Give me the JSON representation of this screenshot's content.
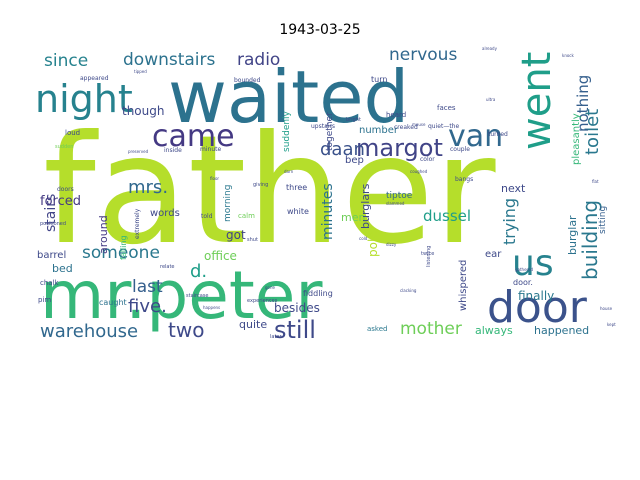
{
  "chart_data": {
    "type": "wordcloud",
    "title": "1943-03-25",
    "palette": [
      "#440154",
      "#482878",
      "#3e4989",
      "#31688e",
      "#26828e",
      "#1f9e89",
      "#35b779",
      "#6ece58",
      "#b5de2b"
    ],
    "words": [
      {
        "text": "father",
        "weight": 100,
        "color": "#b5de2b"
      },
      {
        "text": "waited",
        "weight": 62,
        "color": "#2c728e"
      },
      {
        "text": "mr.peter",
        "weight": 56,
        "color": "#35b779"
      },
      {
        "text": "door",
        "weight": 36,
        "color": "#3b528b"
      },
      {
        "text": "night",
        "weight": 30,
        "color": "#26828e"
      },
      {
        "text": "went",
        "weight": 30,
        "color": "#1f9e89"
      },
      {
        "text": "came",
        "weight": 25,
        "color": "#443983"
      },
      {
        "text": "van",
        "weight": 25,
        "color": "#31688e"
      },
      {
        "text": "us",
        "weight": 24,
        "color": "#26828e"
      },
      {
        "text": "margot",
        "weight": 20,
        "color": "#414487"
      },
      {
        "text": "still",
        "weight": 20,
        "color": "#3e4989"
      },
      {
        "text": "building",
        "weight": 17,
        "color": "#2a788e"
      },
      {
        "text": "daan",
        "weight": 15,
        "color": "#3b528b"
      },
      {
        "text": "mrs.",
        "weight": 14,
        "color": "#31688e"
      },
      {
        "text": "five.",
        "weight": 16,
        "color": "#3e4989"
      },
      {
        "text": "two",
        "weight": 17,
        "color": "#3e4989"
      },
      {
        "text": "warehouse",
        "weight": 14,
        "color": "#31688e"
      },
      {
        "text": "someone",
        "weight": 14,
        "color": "#2a788e"
      },
      {
        "text": "last",
        "weight": 14,
        "color": "#355f8d"
      },
      {
        "text": "d.",
        "weight": 14,
        "color": "#1f9e89"
      },
      {
        "text": "mother",
        "weight": 14,
        "color": "#6ece58"
      },
      {
        "text": "since",
        "weight": 13,
        "color": "#26828e"
      },
      {
        "text": "downstairs",
        "weight": 13,
        "color": "#2c728e"
      },
      {
        "text": "radio",
        "weight": 13,
        "color": "#414487"
      },
      {
        "text": "nervous",
        "weight": 13,
        "color": "#31688e"
      },
      {
        "text": "toilet",
        "weight": 13,
        "color": "#2a788e"
      },
      {
        "text": "nothing",
        "weight": 12,
        "color": "#355f8d"
      },
      {
        "text": "trying",
        "weight": 12,
        "color": "#2a788e"
      },
      {
        "text": "minutes",
        "weight": 11,
        "color": "#2c728e"
      },
      {
        "text": "dussel",
        "weight": 11,
        "color": "#1f9e89"
      },
      {
        "text": "stairs",
        "weight": 10,
        "color": "#414487"
      },
      {
        "text": "forced",
        "weight": 9,
        "color": "#443983"
      },
      {
        "text": "though",
        "weight": 9,
        "color": "#3e4989"
      },
      {
        "text": "finally",
        "weight": 9,
        "color": "#2a788e"
      },
      {
        "text": "pole",
        "weight": 9,
        "color": "#b5de2b"
      },
      {
        "text": "office",
        "weight": 9,
        "color": "#6ece58"
      },
      {
        "text": "always",
        "weight": 8,
        "color": "#35b779"
      },
      {
        "text": "happened",
        "weight": 8,
        "color": "#2c728e"
      },
      {
        "text": "quite",
        "weight": 7,
        "color": "#3e4989"
      },
      {
        "text": "besides",
        "weight": 8,
        "color": "#3e4989"
      },
      {
        "text": "got",
        "weight": 8,
        "color": "#414487"
      },
      {
        "text": "men",
        "weight": 7,
        "color": "#6ece58"
      },
      {
        "text": "burglars",
        "weight": 7,
        "color": "#3e4989"
      },
      {
        "text": "burglar",
        "weight": 7,
        "color": "#2c728e"
      },
      {
        "text": "next",
        "weight": 7,
        "color": "#3e4989"
      },
      {
        "text": "number",
        "weight": 6,
        "color": "#2c728e"
      },
      {
        "text": "bep",
        "weight": 6,
        "color": "#3e4989"
      },
      {
        "text": "around",
        "weight": 7,
        "color": "#443983"
      },
      {
        "text": "bed",
        "weight": 7,
        "color": "#2c728e"
      },
      {
        "text": "barrel",
        "weight": 6,
        "color": "#3e4989"
      },
      {
        "text": "whispered",
        "weight": 6,
        "color": "#3e4989"
      },
      {
        "text": "pleasantly",
        "weight": 6,
        "color": "#35b779"
      },
      {
        "text": "sitting",
        "weight": 5,
        "color": "#355f8d"
      },
      {
        "text": "words",
        "weight": 6,
        "color": "#3e4989"
      },
      {
        "text": "morning",
        "weight": 5,
        "color": "#2a788e"
      },
      {
        "text": "suddenly",
        "weight": 5,
        "color": "#1f9e89"
      },
      {
        "text": "together",
        "weight": 5,
        "color": "#3e4989"
      },
      {
        "text": "tiptoe",
        "weight": 5,
        "color": "#31688e"
      },
      {
        "text": "ear",
        "weight": 5,
        "color": "#3e4989"
      },
      {
        "text": "door.",
        "weight": 4,
        "color": "#3e4989"
      },
      {
        "text": "falling",
        "weight": 4,
        "color": "#35b779"
      },
      {
        "text": "caught",
        "weight": 4,
        "color": "#2c728e"
      },
      {
        "text": "fiddling",
        "weight": 4,
        "color": "#3e4989"
      },
      {
        "text": "asked",
        "weight": 4,
        "color": "#2a788e"
      },
      {
        "text": "chalk",
        "weight": 4,
        "color": "#3e4989"
      },
      {
        "text": "pim",
        "weight": 4,
        "color": "#3e4989"
      },
      {
        "text": "loud",
        "weight": 3,
        "color": "#3e4989"
      },
      {
        "text": "three",
        "weight": 4,
        "color": "#3e4989"
      },
      {
        "text": "white",
        "weight": 4,
        "color": "#3e4989"
      },
      {
        "text": "calm",
        "weight": 3,
        "color": "#6ece58"
      },
      {
        "text": "told",
        "weight": 3,
        "color": "#3e4989"
      },
      {
        "text": "bounded",
        "weight": 3,
        "color": "#3e4989"
      },
      {
        "text": "turn",
        "weight": 4,
        "color": "#3e4989"
      },
      {
        "text": "faces",
        "weight": 3,
        "color": "#3e4989"
      },
      {
        "text": "heard",
        "weight": 3,
        "color": "#3e4989"
      },
      {
        "text": "creaked",
        "weight": 3,
        "color": "#3e4989"
      },
      {
        "text": "quiet—the",
        "weight": 3,
        "color": "#3e4989"
      },
      {
        "text": "turned",
        "weight": 3,
        "color": "#3e4989"
      },
      {
        "text": "bangs",
        "weight": 3,
        "color": "#3e4989"
      },
      {
        "text": "upstairs",
        "weight": 3,
        "color": "#3e4989"
      },
      {
        "text": "couple",
        "weight": 3,
        "color": "#3e4989"
      },
      {
        "text": "color",
        "weight": 3,
        "color": "#3e4989"
      },
      {
        "text": "minute",
        "weight": 3,
        "color": "#3e4989"
      },
      {
        "text": "inside",
        "weight": 3,
        "color": "#3e4989"
      },
      {
        "text": "extremely",
        "weight": 3,
        "color": "#3e4989"
      },
      {
        "text": "doors",
        "weight": 3,
        "color": "#3e4989"
      },
      {
        "text": "sudden",
        "weight": 3,
        "color": "#6ece58"
      },
      {
        "text": "positioned",
        "weight": 3,
        "color": "#3e4989"
      },
      {
        "text": "relate",
        "weight": 3,
        "color": "#3e4989"
      },
      {
        "text": "staircase",
        "weight": 3,
        "color": "#3e4989"
      },
      {
        "text": "listening",
        "weight": 3,
        "color": "#3e4989"
      },
      {
        "text": "twice",
        "weight": 3,
        "color": "#3e4989"
      },
      {
        "text": "later",
        "weight": 3,
        "color": "#3e4989"
      },
      {
        "text": "appeared",
        "weight": 3,
        "color": "#3e4989"
      },
      {
        "text": "shut",
        "weight": 3,
        "color": "#3e4989"
      },
      {
        "text": "experiences",
        "weight": 3,
        "color": "#3e4989"
      },
      {
        "text": "bright",
        "weight": 2,
        "color": "#3e4989"
      },
      {
        "text": "giving",
        "weight": 2,
        "color": "#3e4989"
      },
      {
        "text": "preserved",
        "weight": 2,
        "color": "#3e4989"
      },
      {
        "text": "slammed",
        "weight": 2,
        "color": "#3e4989"
      },
      {
        "text": "cold",
        "weight": 2,
        "color": "#3e4989"
      },
      {
        "text": "dizzy",
        "weight": 2,
        "color": "#3e4989"
      },
      {
        "text": "coughed",
        "weight": 2,
        "color": "#3e4989"
      },
      {
        "text": "already",
        "weight": 2,
        "color": "#3e4989"
      },
      {
        "text": "knock",
        "weight": 2,
        "color": "#3e4989"
      },
      {
        "text": "tipped",
        "weight": 2,
        "color": "#3e4989"
      },
      {
        "text": "happens",
        "weight": 2,
        "color": "#3e4989"
      },
      {
        "text": "kept",
        "weight": 2,
        "color": "#3e4989"
      },
      {
        "text": "house",
        "weight": 2,
        "color": "#3e4989"
      },
      {
        "text": "clacking",
        "weight": 2,
        "color": "#3e4989"
      },
      {
        "text": "gathered",
        "weight": 2,
        "color": "#3e4989"
      },
      {
        "text": "floor",
        "weight": 2,
        "color": "#3e4989"
      },
      {
        "text": "ultra",
        "weight": 2,
        "color": "#3e4989"
      },
      {
        "text": "gone",
        "weight": 2,
        "color": "#3e4989"
      },
      {
        "text": "darn",
        "weight": 2,
        "color": "#3e4989"
      },
      {
        "text": "mouse",
        "weight": 2,
        "color": "#3e4989"
      },
      {
        "text": "flat",
        "weight": 2,
        "color": "#3e4989"
      }
    ]
  }
}
